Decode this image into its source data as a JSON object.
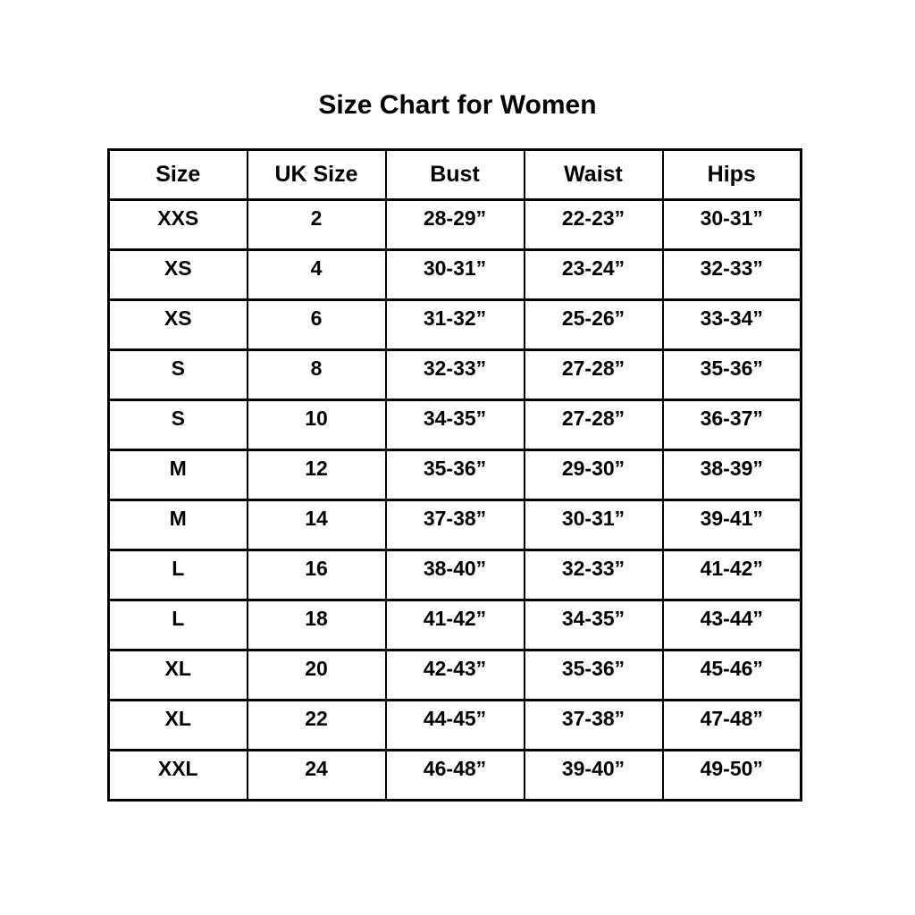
{
  "page": {
    "title": "Size Chart for Women",
    "background_color": "#ffffff",
    "text_color": "#000000",
    "border_color": "#000000"
  },
  "chart_data": {
    "type": "table",
    "title": "Size Chart for Women",
    "columns": [
      "Size",
      "UK Size",
      "Bust",
      "Waist",
      "Hips"
    ],
    "rows": [
      [
        "XXS",
        "2",
        "28-29”",
        "22-23”",
        "30-31”"
      ],
      [
        "XS",
        "4",
        "30-31”",
        "23-24”",
        "32-33”"
      ],
      [
        "XS",
        "6",
        "31-32”",
        "25-26”",
        "33-34”"
      ],
      [
        "S",
        "8",
        "32-33”",
        "27-28”",
        "35-36”"
      ],
      [
        "S",
        "10",
        "34-35”",
        "27-28”",
        "36-37”"
      ],
      [
        "M",
        "12",
        "35-36”",
        "29-30”",
        "38-39”"
      ],
      [
        "M",
        "14",
        "37-38”",
        "30-31”",
        "39-41”"
      ],
      [
        "L",
        "16",
        "38-40”",
        "32-33”",
        "41-42”"
      ],
      [
        "L",
        "18",
        "41-42”",
        "34-35”",
        "43-44”"
      ],
      [
        "XL",
        "20",
        "42-43”",
        "35-36”",
        "45-46”"
      ],
      [
        "XL",
        "22",
        "44-45”",
        "37-38”",
        "47-48”"
      ],
      [
        "XXL",
        "24",
        "46-48”",
        "39-40”",
        "49-50”"
      ]
    ]
  }
}
